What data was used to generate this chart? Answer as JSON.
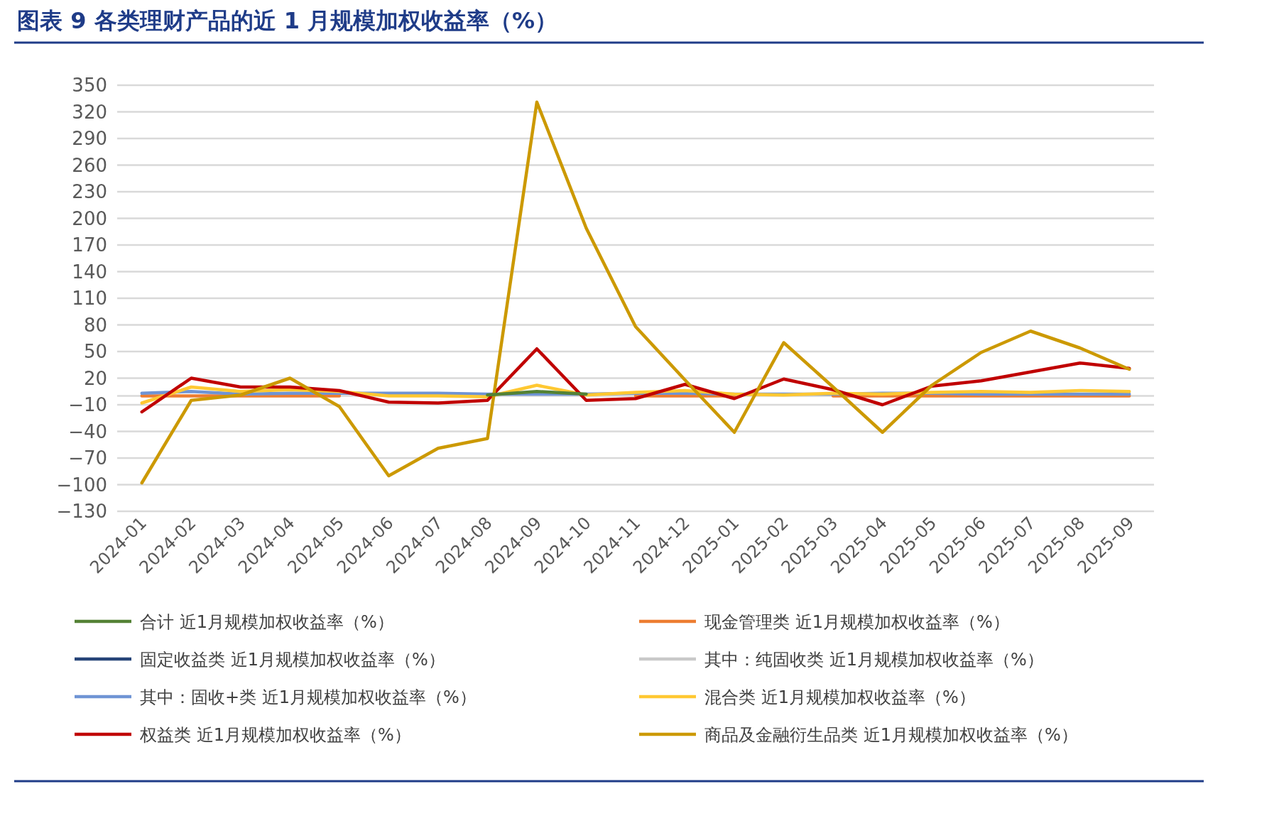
{
  "chart_data": {
    "type": "line",
    "title": "图表 9   各类理财产品的近 1 月规模加权收益率（%）",
    "categories": [
      "2024-01",
      "2024-02",
      "2024-03",
      "2024-04",
      "2024-05",
      "2024-06",
      "2024-07",
      "2024-08",
      "2024-09",
      "2024-10",
      "2024-11",
      "2024-12",
      "2025-01",
      "2025-02",
      "2025-03",
      "2025-04",
      "2025-05",
      "2025-06",
      "2025-07",
      "2025-08",
      "2025-09"
    ],
    "ylim": [
      -130,
      350
    ],
    "yticks": [
      -130,
      -100,
      -70,
      -40,
      -10,
      20,
      50,
      80,
      110,
      140,
      170,
      200,
      230,
      260,
      290,
      320,
      350
    ],
    "grid": "y",
    "legend": "bottom",
    "marker": "none",
    "line_style": "solid",
    "series": [
      {
        "name": "合计 近1月规模加权收益率（%）",
        "color": "#548235",
        "values": [
          null,
          null,
          null,
          null,
          null,
          null,
          null,
          1,
          5,
          2,
          null,
          null,
          null,
          null,
          null,
          null,
          null,
          null,
          null,
          null,
          null
        ]
      },
      {
        "name": "现金管理类 近1月规模加权收益率（%）",
        "color": "#ed7d31",
        "values": [
          0,
          0,
          0,
          0,
          0,
          null,
          null,
          null,
          null,
          null,
          0,
          0,
          0,
          null,
          0,
          0,
          0,
          0,
          0,
          0,
          0
        ]
      },
      {
        "name": "固定收益类 近1月规模加权收益率（%）",
        "color": "#264478",
        "values": [
          null,
          null,
          null,
          null,
          null,
          null,
          null,
          null,
          null,
          null,
          null,
          null,
          null,
          null,
          null,
          null,
          null,
          null,
          null,
          null,
          null
        ]
      },
      {
        "name": "其中：纯固收类 近1月规模加权收益率（%）",
        "color": "#c9c9c9",
        "values": [
          null,
          null,
          null,
          null,
          null,
          null,
          null,
          null,
          null,
          null,
          null,
          null,
          null,
          null,
          null,
          null,
          null,
          null,
          null,
          null,
          null
        ]
      },
      {
        "name": "其中：固收+类 近1月规模加权收益率（%）",
        "color": "#6f94d4",
        "values": [
          3,
          5,
          2,
          3,
          3,
          3,
          3,
          2,
          2,
          2,
          3,
          3,
          2,
          2,
          2,
          3,
          3,
          2,
          2,
          2,
          2
        ]
      },
      {
        "name": "混合类 近1月规模加权收益率（%）",
        "color": "#ffc832",
        "values": [
          -8,
          10,
          5,
          7,
          5,
          0,
          0,
          -1,
          12,
          1,
          4,
          6,
          2,
          1,
          3,
          2,
          4,
          5,
          4,
          6,
          5
        ]
      },
      {
        "name": "权益类 近1月规模加权收益率（%）",
        "color": "#c00000",
        "values": [
          -18,
          20,
          10,
          10,
          6,
          -7,
          -8,
          -5,
          53,
          -5,
          -3,
          13,
          -3,
          19,
          7,
          -10,
          11,
          17,
          27,
          37,
          31
        ]
      },
      {
        "name": "商品及金融衍生品类 近1月规模加权收益率（%）",
        "color": "#cc9900",
        "values": [
          -98,
          -5,
          1,
          20,
          -12,
          -90,
          -59,
          -48,
          331,
          189,
          78,
          18,
          -41,
          60,
          10,
          -41,
          12,
          49,
          73,
          54,
          30
        ]
      }
    ]
  }
}
